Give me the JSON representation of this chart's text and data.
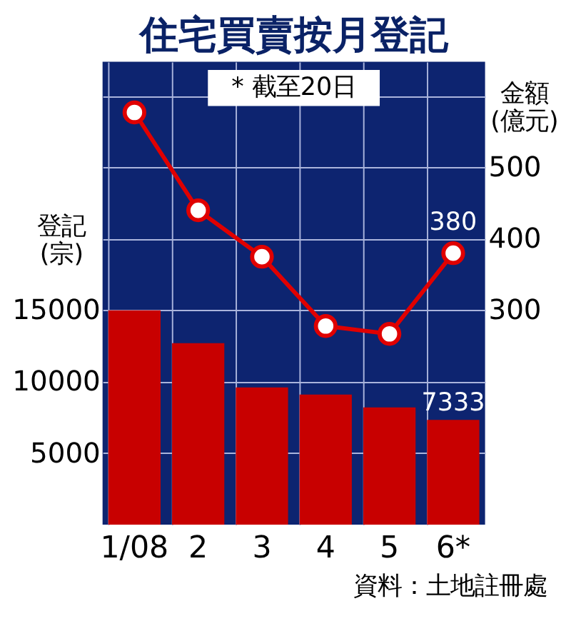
{
  "chart_data": {
    "type": "bar",
    "title": "住宅買賣按月登記",
    "ylabel": "登記\n(宗)",
    "y2label": "金額\n(億元)",
    "categories": [
      "1/08",
      "2",
      "3",
      "4",
      "5",
      "6*"
    ],
    "ylim": [
      0,
      32400
    ],
    "yticks": [
      5000,
      10000,
      15000,
      {
        "value": 20000,
        "label": null
      },
      {
        "value": 25000,
        "label": null
      },
      {
        "value": 30000,
        "label": null
      }
    ],
    "y2lim": [
      0,
      648
    ],
    "y2ticks": [
      300,
      400,
      500
    ],
    "series": [
      {
        "color": "#c80000",
        "values": [
          15000,
          12700,
          9600,
          9100,
          8200,
          7333
        ],
        "value_labels": [
          null,
          null,
          null,
          null,
          null,
          "7333"
        ]
      },
      {
        "type": "line",
        "axis": "y2",
        "color": "#e00000",
        "values": [
          577,
          440,
          375,
          278,
          267,
          380
        ],
        "value_labels": [
          null,
          null,
          null,
          null,
          null,
          "380"
        ]
      }
    ],
    "marker": "circle",
    "grid": true,
    "annotations": [
      "* 截至20日",
      "資料：土地註冊處"
    ]
  }
}
